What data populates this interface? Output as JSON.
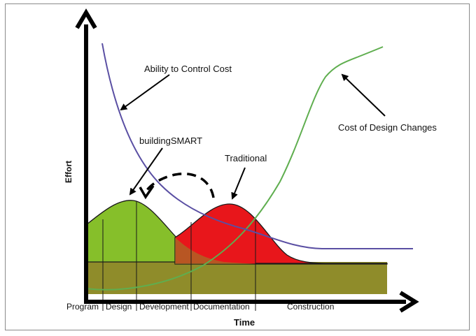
{
  "diagram": {
    "y_axis_label": "Effort",
    "x_axis_label": "Time",
    "annotations": {
      "ability_to_control_cost": "Ability to Control Cost",
      "cost_of_design_changes": "Cost of Design Changes",
      "building_smart": "buildingSMART",
      "traditional": "Traditional"
    },
    "phases": [
      "Program",
      "Design",
      "Development",
      "Documentation",
      "Construction"
    ],
    "colors": {
      "ability_curve": "#5a4fa3",
      "cost_curve": "#5fae4f",
      "building_smart_fill": "#86bf2a",
      "traditional_fill": "#e8161b",
      "base_area": "#8f8c2a",
      "axis": "#000000"
    }
  }
}
